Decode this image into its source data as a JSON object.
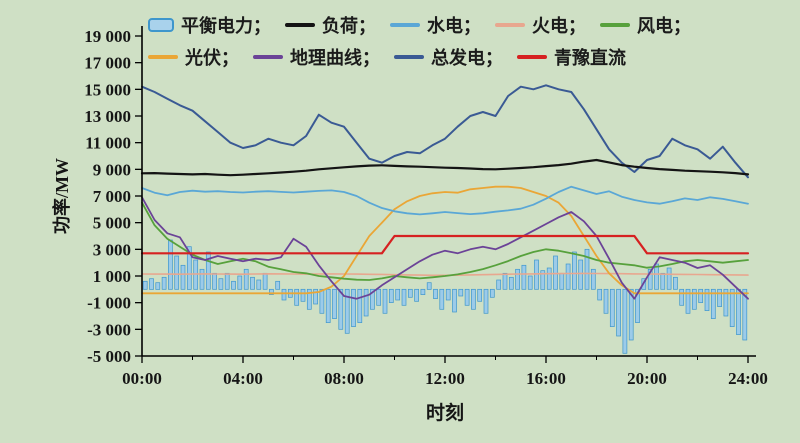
{
  "page": {
    "background": "#cfe0c5"
  },
  "legend": {
    "rows": [
      [
        {
          "id": "balancing-power",
          "label": "平衡电力；",
          "swatch": "bar",
          "color": "#a9d2ec",
          "border": "#3e96cc"
        },
        {
          "id": "load",
          "label": "负荷；",
          "swatch": "line",
          "color": "#141414"
        },
        {
          "id": "hydro",
          "label": "水电；",
          "swatch": "line",
          "color": "#5aa7d6"
        },
        {
          "id": "thermal",
          "label": "火电；",
          "swatch": "line",
          "color": "#e8a78f"
        },
        {
          "id": "wind",
          "label": "风电；",
          "swatch": "line",
          "color": "#57a13c"
        }
      ],
      [
        {
          "id": "pv",
          "label": "光伏；",
          "swatch": "line",
          "color": "#eaa636"
        },
        {
          "id": "geo-curve",
          "label": "地理曲线；",
          "swatch": "line",
          "color": "#6b4397"
        },
        {
          "id": "total-generation",
          "label": "总发电；",
          "swatch": "line",
          "color": "#3a5a94"
        },
        {
          "id": "qingyu-dc",
          "label": "青豫直流",
          "swatch": "line",
          "color": "#d62121"
        }
      ]
    ]
  },
  "chart_data": {
    "type": "line+bar",
    "title": "",
    "xlabel": "时刻",
    "ylabel": "功率/MW",
    "xlim": [
      0,
      24
    ],
    "ylim": [
      -5000,
      19000
    ],
    "grid": false,
    "legend_position": "top-left, two rows, inside plot",
    "x_ticks": [
      {
        "value": 0,
        "label": "00:00"
      },
      {
        "value": 4,
        "label": "04:00"
      },
      {
        "value": 8,
        "label": "08:00"
      },
      {
        "value": 12,
        "label": "12:00"
      },
      {
        "value": 16,
        "label": "16:00"
      },
      {
        "value": 20,
        "label": "20:00"
      },
      {
        "value": 24,
        "label": "24:00"
      }
    ],
    "y_ticks": [
      {
        "value": 19000,
        "label": "19 000"
      },
      {
        "value": 17000,
        "label": "17 000"
      },
      {
        "value": 15000,
        "label": "15 000"
      },
      {
        "value": 13000,
        "label": "13 000"
      },
      {
        "value": 11000,
        "label": "11 000"
      },
      {
        "value": 9000,
        "label": "9 000"
      },
      {
        "value": 7000,
        "label": "7 000"
      },
      {
        "value": 5000,
        "label": "5 000"
      },
      {
        "value": 3000,
        "label": "3 000"
      },
      {
        "value": 1000,
        "label": "1 000"
      },
      {
        "value": -1000,
        "label": "-1 000"
      },
      {
        "value": -3000,
        "label": "-3 000"
      },
      {
        "value": -5000,
        "label": "-5 000"
      }
    ],
    "bar_series": {
      "id": "balancing-power",
      "name": "平衡电力",
      "color": "#9ccbe9",
      "stroke": "#3e96cc",
      "interval_hours": 0.25,
      "values": [
        600,
        800,
        500,
        900,
        3700,
        2500,
        1800,
        3200,
        2200,
        1500,
        2800,
        1200,
        800,
        1200,
        600,
        1000,
        1500,
        900,
        700,
        1200,
        -400,
        600,
        -800,
        -600,
        -1200,
        -900,
        -1500,
        -1100,
        -1800,
        -2500,
        -2200,
        -3000,
        -3300,
        -2800,
        -2500,
        -2000,
        -1500,
        -1200,
        -1800,
        -1000,
        -800,
        -1200,
        -600,
        -900,
        -400,
        500,
        -700,
        -1500,
        -800,
        -1700,
        -500,
        -1200,
        -1500,
        -900,
        -1800,
        -600,
        700,
        1200,
        900,
        1500,
        1800,
        1000,
        2200,
        1400,
        1600,
        2500,
        1200,
        1900,
        2800,
        2200,
        3000,
        1500,
        -800,
        -1800,
        -2800,
        -3500,
        -4800,
        -3800,
        -2500,
        800,
        1500,
        1900,
        1200,
        1600,
        900,
        -1200,
        -1800,
        -1500,
        -1000,
        -1600,
        -2200,
        -1300,
        -2000,
        -2800,
        -3400,
        -3800
      ]
    },
    "line_series": [
      {
        "id": "thermal",
        "name": "火电",
        "color": "#e8a78f",
        "width": 1.6,
        "x_step": 0.5,
        "values": [
          1150,
          1145,
          1140,
          1135,
          1150,
          1158,
          1150,
          1142,
          1135,
          1150,
          1165,
          1158,
          1150,
          1142,
          1150,
          1158,
          1150,
          1140,
          1130,
          1118,
          1100,
          1085,
          1065,
          1052,
          1050,
          1060,
          1080,
          1100,
          1120,
          1138,
          1150,
          1160,
          1170,
          1180,
          1190,
          1198,
          1190,
          1180,
          1170,
          1160,
          1150,
          1140,
          1130,
          1120,
          1110,
          1100,
          1090,
          1080,
          1070
        ]
      },
      {
        "id": "pv",
        "name": "光伏",
        "color": "#eaa636",
        "width": 1.8,
        "x_step": 0.5,
        "values": [
          -300,
          -300,
          -300,
          -300,
          -300,
          -300,
          -300,
          -300,
          -300,
          -300,
          -300,
          -300,
          -300,
          -300,
          -200,
          200,
          1000,
          2500,
          4000,
          5000,
          6000,
          6600,
          7000,
          7200,
          7300,
          7250,
          7500,
          7600,
          7700,
          7700,
          7600,
          7300,
          7000,
          6500,
          5500,
          4000,
          2500,
          1200,
          300,
          -300,
          -300,
          -300,
          -300,
          -300,
          -300,
          -300,
          -300,
          -300,
          -300
        ]
      },
      {
        "id": "hydro",
        "name": "水电",
        "color": "#5aa7d6",
        "width": 1.8,
        "x_step": 0.5,
        "values": [
          7600,
          7250,
          7050,
          7300,
          7400,
          7320,
          7360,
          7300,
          7260,
          7320,
          7360,
          7310,
          7260,
          7320,
          7380,
          7420,
          7300,
          7000,
          6500,
          6100,
          5850,
          5700,
          5620,
          5700,
          5800,
          5720,
          5640,
          5700,
          5820,
          5920,
          6050,
          6350,
          6800,
          7300,
          7700,
          7420,
          7150,
          7350,
          6950,
          6700,
          6520,
          6420,
          6600,
          6820,
          6700,
          6900,
          6780,
          6600,
          6420
        ]
      },
      {
        "id": "wind",
        "name": "风电",
        "color": "#57a13c",
        "width": 1.8,
        "x_step": 0.5,
        "values": [
          6500,
          4800,
          3800,
          3200,
          2600,
          2200,
          1900,
          2100,
          2300,
          2100,
          1700,
          1500,
          1300,
          1200,
          1000,
          900,
          800,
          720,
          700,
          820,
          1000,
          900,
          820,
          900,
          1000,
          1120,
          1300,
          1520,
          1800,
          2120,
          2500,
          2800,
          3000,
          2900,
          2700,
          2500,
          2200,
          2000,
          1900,
          1800,
          1620,
          1720,
          1900,
          2100,
          2200,
          2100,
          2000,
          2100,
          2200
        ]
      },
      {
        "id": "geo-curve",
        "name": "地理曲线",
        "color": "#6b4397",
        "width": 1.8,
        "x_step": 0.5,
        "values": [
          6900,
          5200,
          4200,
          3900,
          2400,
          2200,
          2500,
          2300,
          2100,
          2300,
          2200,
          2400,
          3800,
          3200,
          1800,
          600,
          -500,
          -700,
          -400,
          300,
          900,
          1500,
          2100,
          2600,
          2900,
          2700,
          3000,
          3200,
          3000,
          3400,
          3900,
          4400,
          4900,
          5400,
          5800,
          5100,
          4000,
          2300,
          500,
          -700,
          900,
          2400,
          2200,
          2000,
          1600,
          1800,
          1100,
          200,
          -700
        ]
      },
      {
        "id": "total-generation",
        "name": "总发电",
        "color": "#3a5a94",
        "width": 2,
        "x_step": 0.5,
        "values": [
          15200,
          14800,
          14300,
          13800,
          13400,
          12600,
          11800,
          11000,
          10600,
          10800,
          11300,
          11000,
          10800,
          11500,
          13100,
          12500,
          12200,
          11000,
          9800,
          9500,
          10000,
          10300,
          10200,
          10800,
          11300,
          12200,
          13000,
          13300,
          13000,
          14500,
          15200,
          15000,
          15300,
          15000,
          14800,
          13500,
          12000,
          10500,
          9500,
          8800,
          9700,
          10000,
          11300,
          10800,
          10500,
          9800,
          10700,
          9500,
          8400
        ]
      },
      {
        "id": "load",
        "name": "负荷",
        "color": "#141414",
        "width": 2.2,
        "x_step": 0.5,
        "values": [
          8700,
          8720,
          8680,
          8650,
          8620,
          8650,
          8600,
          8560,
          8600,
          8650,
          8700,
          8760,
          8820,
          8900,
          9000,
          9080,
          9150,
          9220,
          9280,
          9300,
          9260,
          9220,
          9200,
          9160,
          9120,
          9100,
          9060,
          9020,
          9000,
          9050,
          9100,
          9160,
          9240,
          9320,
          9420,
          9580,
          9700,
          9520,
          9320,
          9200,
          9100,
          9020,
          8960,
          8900,
          8860,
          8820,
          8780,
          8720,
          8620
        ]
      },
      {
        "id": "qingyu-dc",
        "name": "青豫直流",
        "color": "#d62121",
        "width": 2.2,
        "x_step": 0.5,
        "values": [
          2700,
          2700,
          2700,
          2700,
          2700,
          2700,
          2700,
          2700,
          2700,
          2700,
          2700,
          2700,
          2700,
          2700,
          2700,
          2700,
          2700,
          2700,
          2700,
          2700,
          4000,
          4000,
          4000,
          4000,
          4000,
          4000,
          4000,
          4000,
          4000,
          4000,
          4000,
          4000,
          4000,
          4000,
          4000,
          4000,
          4000,
          4000,
          4000,
          4000,
          2700,
          2700,
          2700,
          2700,
          2700,
          2700,
          2700,
          2700,
          2700
        ]
      }
    ]
  }
}
